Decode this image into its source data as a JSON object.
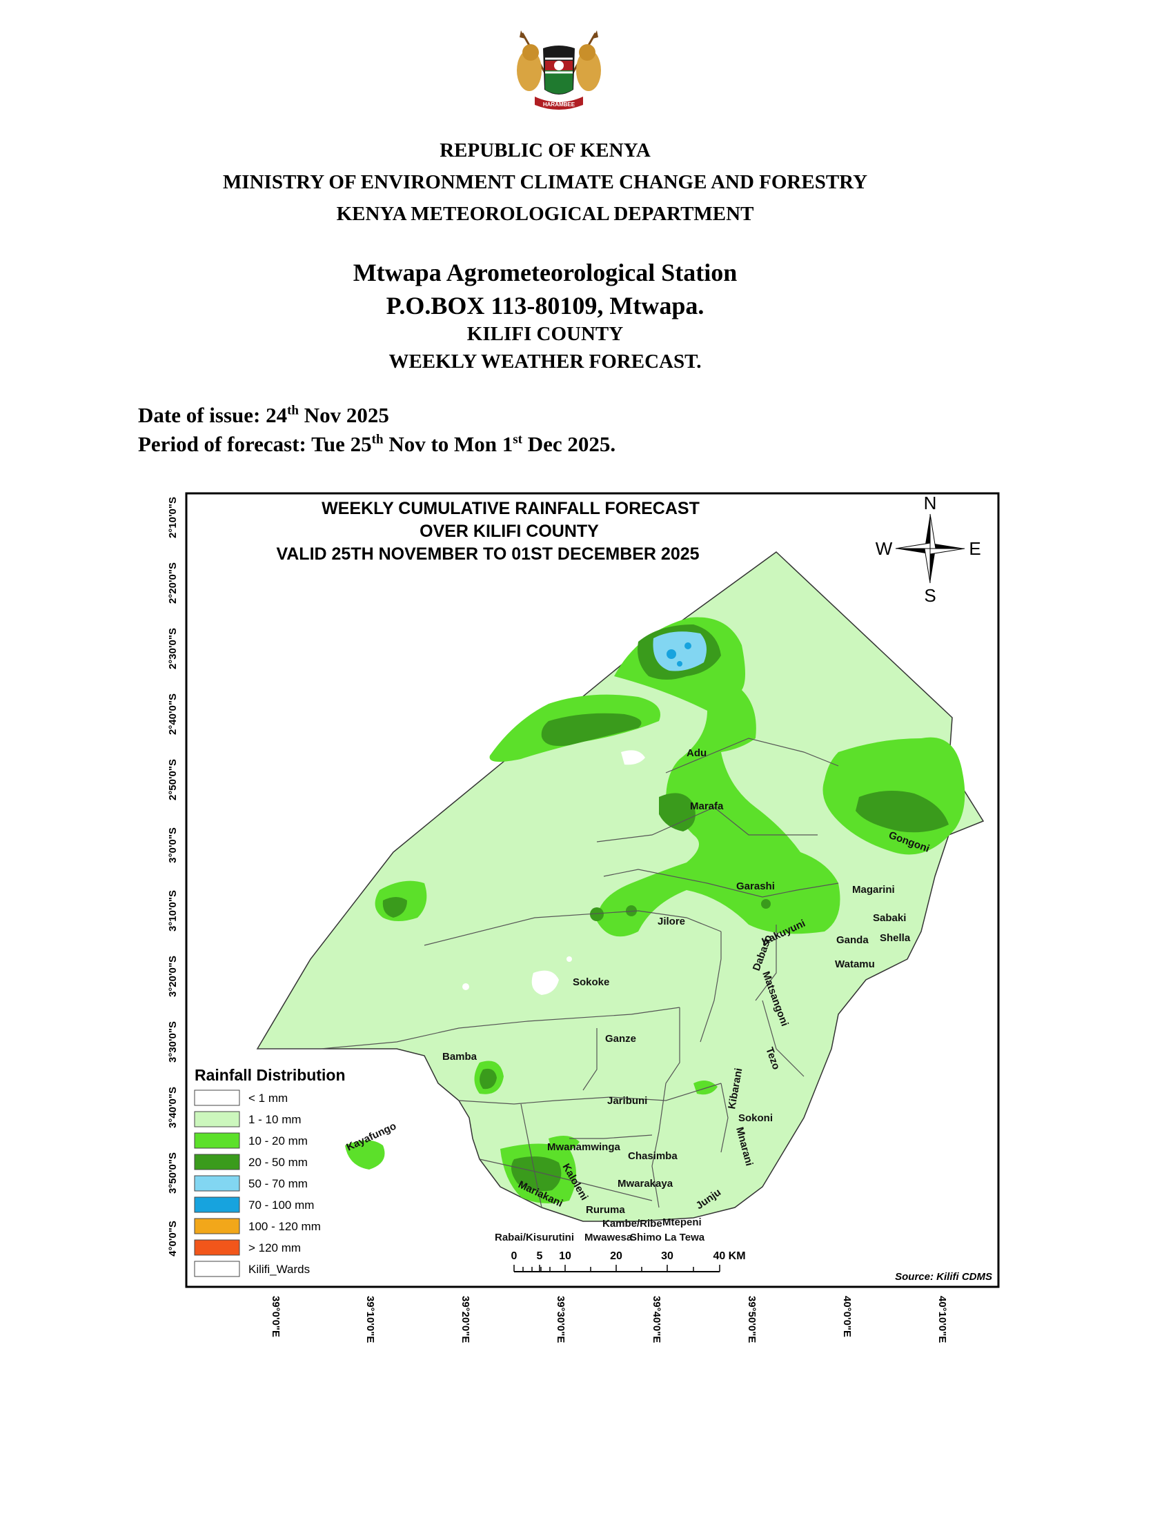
{
  "header": {
    "line1": "REPUBLIC OF KENYA",
    "line2": "MINISTRY OF ENVIRONMENT CLIMATE CHANGE AND FORESTRY",
    "line3": "KENYA METEOROLOGICAL DEPARTMENT",
    "emblem_motto": "HARAMBEE"
  },
  "station": {
    "name": "Mtwapa Agrometeorological Station",
    "address": "P.O.BOX 113-80109, Mtwapa.",
    "county": "KILIFI COUNTY",
    "product": "WEEKLY WEATHER FORECAST."
  },
  "issue": {
    "date_label": "Date of issue: ",
    "date_day": "24",
    "date_day_suffix": "th",
    "date_rest": " Nov 2025",
    "period_label": "Period of forecast: Tue 25",
    "period_suffix1": "th",
    "period_mid": " Nov to Mon 1",
    "period_suffix2": "st",
    "period_end": " Dec 2025."
  },
  "map": {
    "title_line1": "WEEKLY CUMULATIVE RAINFALL FORECAST",
    "title_line2": "OVER KILIFI COUNTY",
    "title_line3": "VALID 25TH NOVEMBER TO 01ST DECEMBER 2025",
    "compass": {
      "n": "N",
      "s": "S",
      "e": "E",
      "w": "W"
    },
    "lat_ticks": [
      "2°10'0\"S",
      "2°20'0\"S",
      "2°30'0\"S",
      "2°40'0\"S",
      "2°50'0\"S",
      "3°0'0\"S",
      "3°10'0\"S",
      "3°20'0\"S",
      "3°30'0\"S",
      "3°40'0\"S",
      "3°50'0\"S",
      "4°0'0\"S"
    ],
    "lon_ticks": [
      "39°0'0\"E",
      "39°10'0\"E",
      "39°20'0\"E",
      "39°30'0\"E",
      "39°40'0\"E",
      "39°50'0\"E",
      "40°0'0\"E",
      "40°10'0\"E"
    ],
    "legend": {
      "title": "Rainfall Distribution",
      "items": [
        {
          "label": "< 1 mm",
          "color": "#ffffff"
        },
        {
          "label": "1 - 10 mm",
          "color": "#ccf7bd"
        },
        {
          "label": "10 - 20 mm",
          "color": "#5ce02a"
        },
        {
          "label": "20 - 50 mm",
          "color": "#3a9b1c"
        },
        {
          "label": "50 - 70 mm",
          "color": "#82d6f2"
        },
        {
          "label": "70 - 100 mm",
          "color": "#17a3de"
        },
        {
          "label": "100 - 120 mm",
          "color": "#f2a71a"
        },
        {
          "label": "> 120 mm",
          "color": "#f2561a"
        },
        {
          "label": "Kilifi_Wards",
          "color": "#ffffff"
        }
      ]
    },
    "scale": {
      "labels": [
        "0",
        "5",
        "10",
        "20",
        "30",
        "40 KM"
      ]
    },
    "source": "Source: Kilifi CDMS",
    "wards": [
      "Adu",
      "Marafa",
      "Gongoni",
      "Garashi",
      "Magarini",
      "Sabaki",
      "Jilore",
      "Kakuyuni",
      "Ganda",
      "Shella",
      "Watamu",
      "Dabaso",
      "Sokoke",
      "Matsangoni",
      "Ganze",
      "Bamba",
      "Tezo",
      "Kibarani",
      "Sokoni",
      "Jaribuni",
      "Mnarani",
      "Mwanamwinga",
      "Chasimba",
      "Kayafungo",
      "Kaloleni",
      "Mwarakaya",
      "Mariakani",
      "Junju",
      "Ruruma",
      "Kambe/Ribe",
      "Mtepeni",
      "Rabai/Kisurutini",
      "Mwawesa",
      "Shimo La Tewa"
    ]
  }
}
